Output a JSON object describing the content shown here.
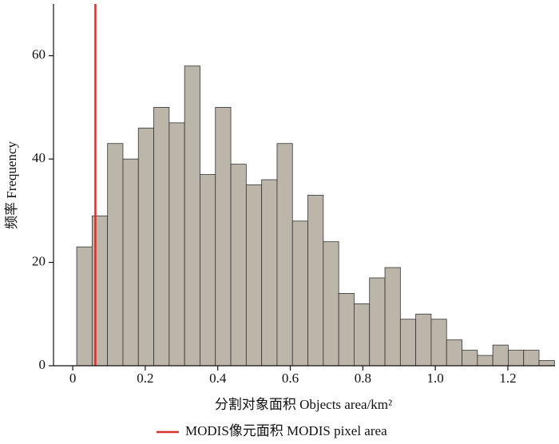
{
  "chart_data": {
    "type": "histogram",
    "xlabel": "分割对象面积 Objects area/km²",
    "ylabel": "频率 Frequency",
    "bins": [
      0.011,
      0.0535,
      0.096,
      0.1385,
      0.181,
      0.2235,
      0.266,
      0.3085,
      0.351,
      0.3935,
      0.436,
      0.4785,
      0.521,
      0.5635,
      0.606,
      0.6485,
      0.691,
      0.7335,
      0.776,
      0.8185,
      0.861,
      0.9035,
      0.946,
      0.9885,
      1.031,
      1.0735,
      1.116,
      1.1585,
      1.201,
      1.2435,
      1.286,
      1.3285
    ],
    "values": [
      23,
      29,
      43,
      40,
      46,
      50,
      47,
      58,
      37,
      50,
      39,
      35,
      36,
      43,
      28,
      33,
      24,
      14,
      12,
      17,
      19,
      9,
      10,
      9,
      5,
      3,
      2,
      4,
      3,
      3,
      1
    ],
    "color": "#bbb5aa",
    "edge_color": "#333333",
    "reference_line": {
      "name": "MODIS像元面积 MODIS pixel area",
      "x": 0.0625,
      "color": "#d9302c"
    },
    "xlim": [
      -0.053,
      1.33
    ],
    "ylim": [
      0,
      70
    ],
    "xticks": [
      0,
      0.2,
      0.4,
      0.6,
      0.8,
      {
        "value": 1,
        "label": "1.0"
      },
      1.2
    ],
    "yticks": [
      0,
      20,
      40,
      60
    ],
    "legend": "bottom"
  }
}
